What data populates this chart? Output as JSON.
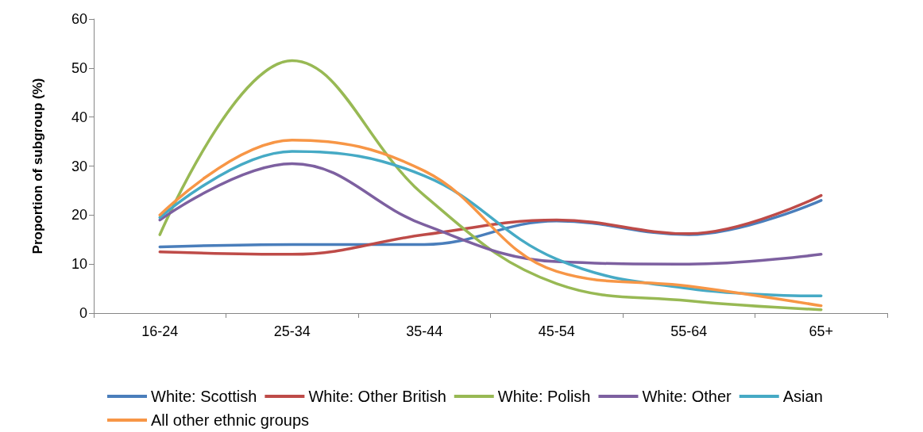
{
  "chart_data": {
    "type": "line",
    "ylabel": "Proportion of subgroup (%)",
    "categories": [
      "16-24",
      "25-34",
      "35-44",
      "45-54",
      "55-64",
      "65+"
    ],
    "series": [
      {
        "name": "White: Scottish",
        "color": "#4a7ebb",
        "values": [
          13.5,
          14,
          14,
          18.8,
          16,
          23
        ]
      },
      {
        "name": "White: Other British",
        "color": "#be4b48",
        "values": [
          12.5,
          12,
          16,
          19,
          16.2,
          24
        ]
      },
      {
        "name": "White: Polish",
        "color": "#98b954",
        "values": [
          16,
          51.5,
          24,
          6,
          2.5,
          0.7
        ]
      },
      {
        "name": "White: Other",
        "color": "#7d60a0",
        "values": [
          19,
          30.5,
          18,
          10.5,
          10,
          12
        ]
      },
      {
        "name": "Asian",
        "color": "#46aac5",
        "values": [
          19.5,
          33,
          28,
          11,
          5,
          3.5
        ]
      },
      {
        "name": "All other ethnic groups",
        "color": "#f79646",
        "values": [
          20,
          35.3,
          29,
          8.5,
          5.5,
          1.5
        ]
      }
    ],
    "ylim": [
      0,
      60
    ],
    "yticks": [
      0,
      10,
      20,
      30,
      40,
      50,
      60
    ],
    "grid": false,
    "legend": "bottom",
    "marker": "none",
    "line_style": "solid"
  }
}
